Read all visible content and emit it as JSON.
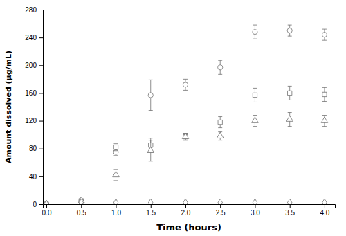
{
  "chart_data": {
    "type": "scatter",
    "xlabel": "Time (hours)",
    "ylabel": "Amount dissolved (µg/mL)",
    "x": [
      0.0,
      0.5,
      1.0,
      1.5,
      2.0,
      2.5,
      3.0,
      3.5,
      4.0
    ],
    "series": [
      {
        "marker": "circle",
        "color": "#707070",
        "values": [
          0,
          3,
          75,
          157,
          172,
          197,
          248,
          250,
          244
        ],
        "errors": [
          0,
          1,
          5,
          22,
          8,
          10,
          10,
          8,
          8
        ]
      },
      {
        "marker": "square",
        "color": "#707070",
        "values": [
          0,
          5,
          82,
          85,
          97,
          118,
          157,
          160,
          158
        ],
        "errors": [
          0,
          1,
          5,
          10,
          5,
          8,
          10,
          10,
          10
        ]
      },
      {
        "marker": "triangle",
        "color": "#707070",
        "values": [
          0,
          5,
          42,
          77,
          97,
          98,
          120,
          122,
          120
        ],
        "errors": [
          0,
          1,
          8,
          15,
          5,
          6,
          8,
          10,
          8
        ]
      },
      {
        "marker": "diamond",
        "color": "#707070",
        "values": [
          0,
          2,
          2,
          2,
          2,
          2,
          2,
          2,
          2
        ],
        "errors": [
          0,
          0.5,
          0.5,
          0.5,
          0.5,
          0.5,
          0.5,
          0.5,
          0.5
        ]
      }
    ],
    "xlim": [
      -0.05,
      4.15
    ],
    "ylim": [
      0,
      280
    ],
    "xticks": [
      {
        "value": 0.0,
        "label": "0.0"
      },
      0.5,
      {
        "value": 1.0,
        "label": "1.0"
      },
      1.5,
      {
        "value": 2.0,
        "label": "2.0"
      },
      2.5,
      {
        "value": 3.0,
        "label": "3.0"
      },
      3.5,
      {
        "value": 4.0,
        "label": "4.0"
      }
    ],
    "yticks": [
      0,
      40,
      80,
      120,
      160,
      200,
      240,
      280
    ],
    "grid": false
  }
}
